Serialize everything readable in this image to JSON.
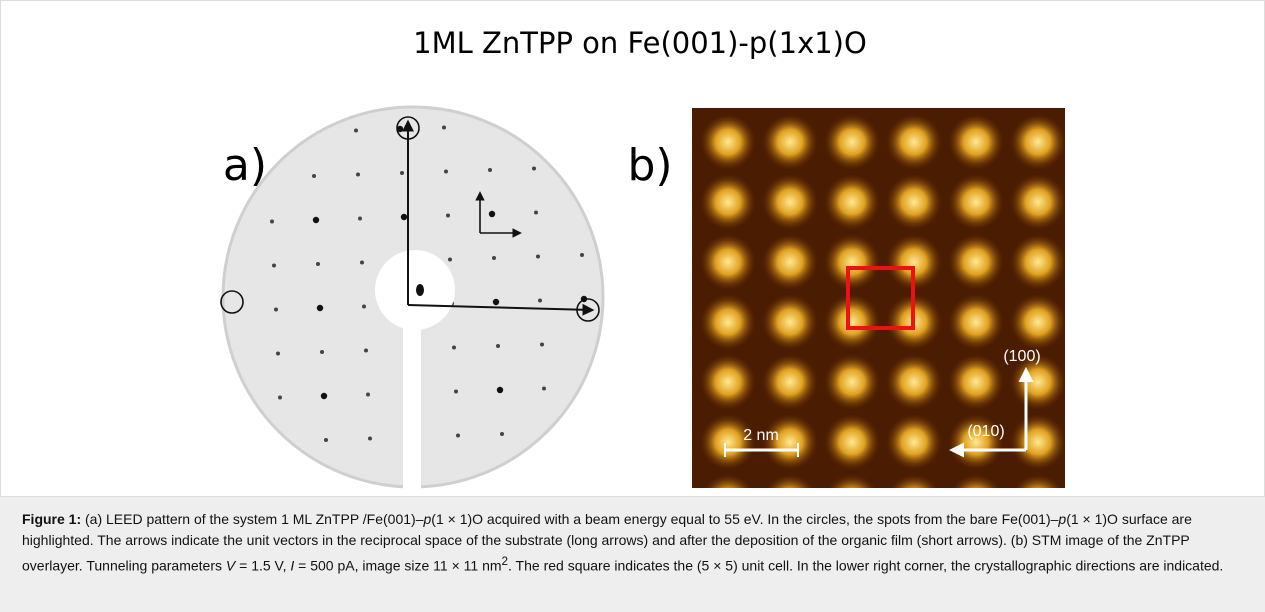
{
  "figure": {
    "title": "1ML ZnTPP on Fe(001)-p(1x1)O",
    "panel_a": {
      "label": "a)"
    },
    "panel_b": {
      "label": "b)",
      "direction_1": "(100)",
      "direction_2": "(010)",
      "scale_bar": "2 nm"
    },
    "caption": [
      "Figure 1:",
      " (a) LEED pattern of the system 1 ML ZnTPP /Fe(001)–",
      "p",
      "(1 × 1)O acquired with a beam energy equal to 55 eV. In the circles, the spots from the bare Fe(001)–",
      "p",
      "(1 × 1)O surface are highlighted. The arrows indicate the unit vectors in the reciprocal space of the substrate (long arrows) and after the deposition of the organic film (short arrows). (b) STM image of the ZnTPP overlayer. Tunneling parameters ",
      "V",
      " = 1.5 V, ",
      "I",
      " = 500 pA, image size 11 × 11 nm",
      "2",
      ". The red square indicates the (5 × 5) unit cell. In the lower right corner, the crystallographic directions are indicated."
    ]
  }
}
